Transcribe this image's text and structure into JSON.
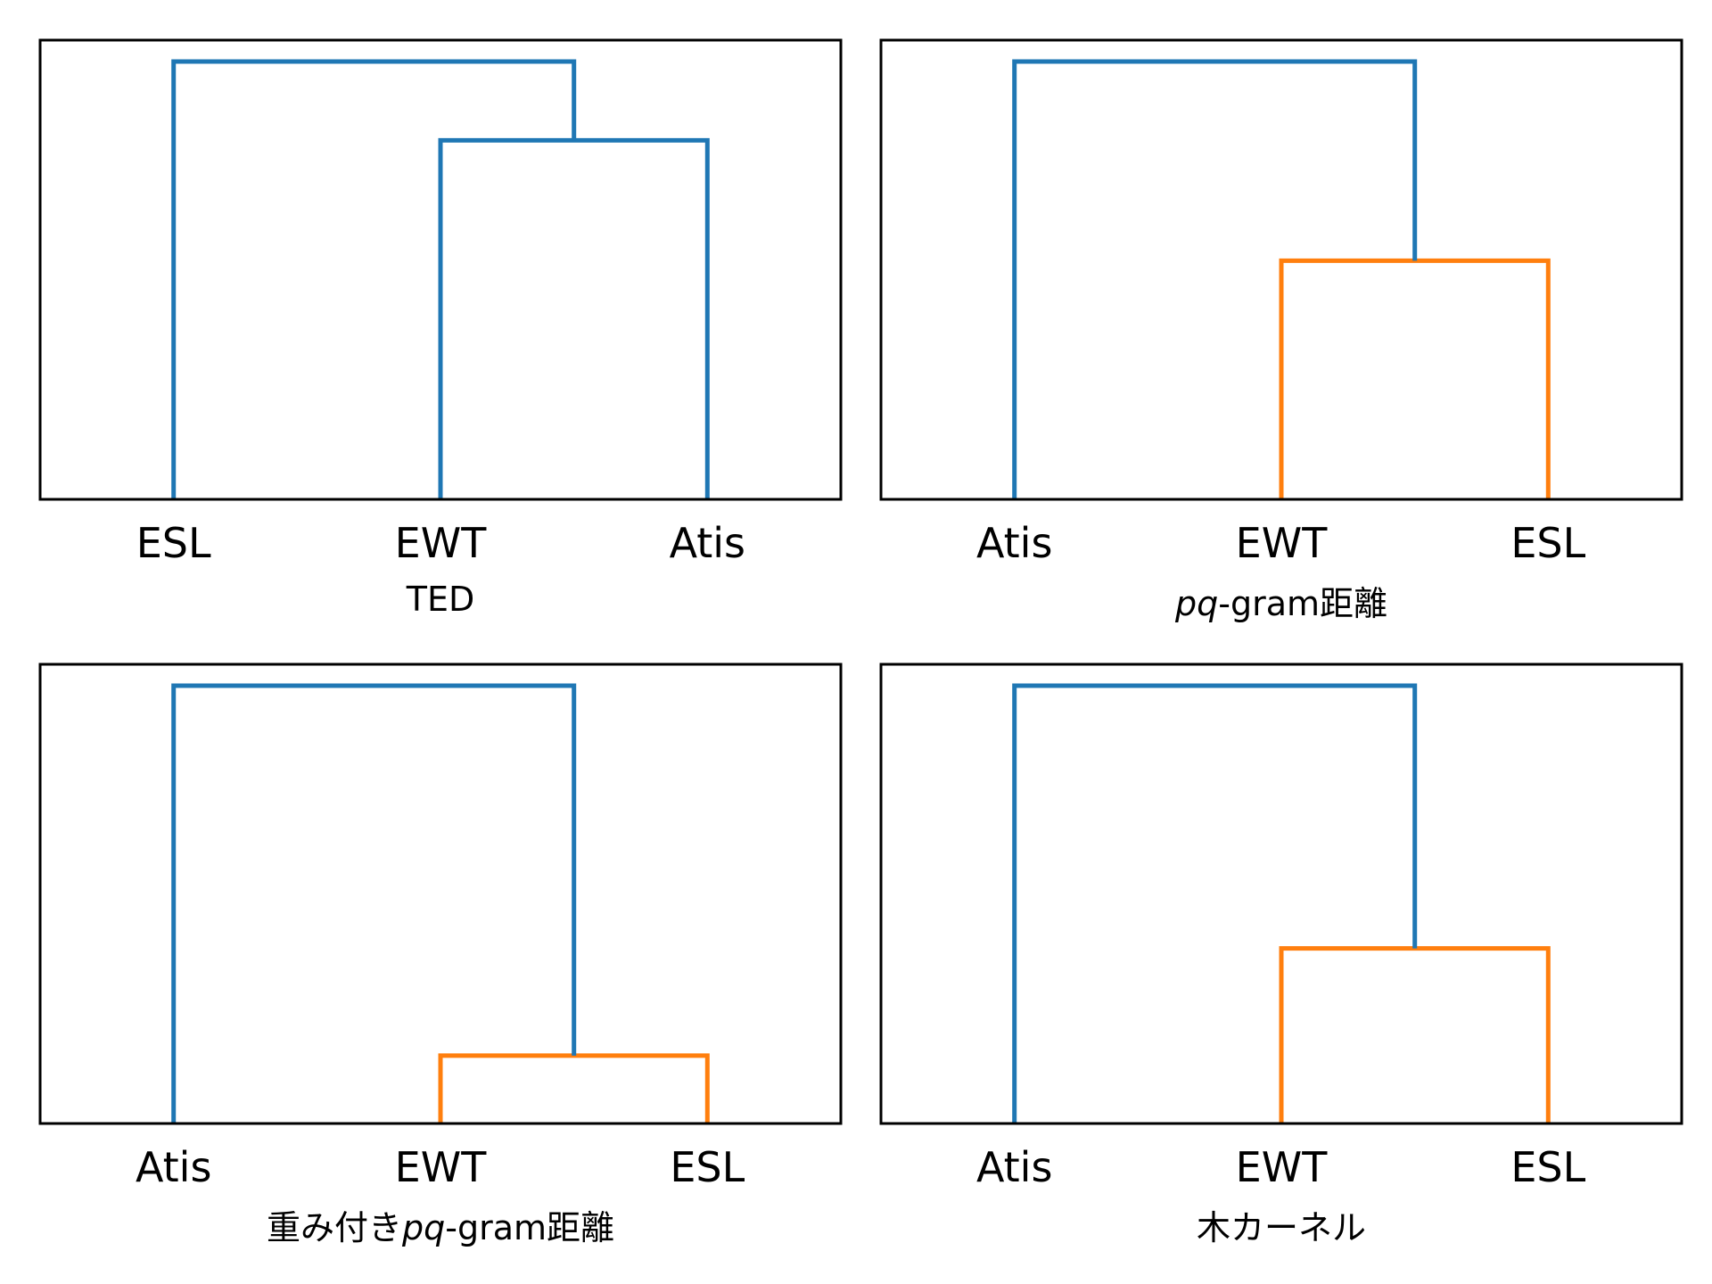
{
  "chart_data": [
    {
      "type": "dendrogram",
      "caption": [
        {
          "text": "TED",
          "italic": false
        }
      ],
      "leaves": [
        "ESL",
        "EWT",
        "Atis"
      ],
      "merges": [
        {
          "left": 1,
          "right": 2,
          "height": 0.82,
          "color": "#1f77b4"
        },
        {
          "left": 0,
          "right": 3,
          "height": 1.0,
          "color": "#1f77b4"
        }
      ],
      "leaf_colors": [
        "#1f77b4",
        "#1f77b4",
        "#1f77b4"
      ]
    },
    {
      "type": "dendrogram",
      "caption": [
        {
          "text": "pq",
          "italic": true
        },
        {
          "text": "-gram距離",
          "italic": false
        }
      ],
      "leaves": [
        "Atis",
        "EWT",
        "ESL"
      ],
      "merges": [
        {
          "left": 1,
          "right": 2,
          "height": 0.545,
          "color": "#ff7f0e"
        },
        {
          "left": 0,
          "right": 3,
          "height": 1.0,
          "color": "#1f77b4"
        }
      ],
      "leaf_colors": [
        "#1f77b4",
        "#ff7f0e",
        "#ff7f0e"
      ]
    },
    {
      "type": "dendrogram",
      "caption": [
        {
          "text": "重み付き",
          "italic": false
        },
        {
          "text": "pq",
          "italic": true
        },
        {
          "text": "-gram距離",
          "italic": false
        }
      ],
      "leaves": [
        "Atis",
        "EWT",
        "ESL"
      ],
      "merges": [
        {
          "left": 1,
          "right": 2,
          "height": 0.155,
          "color": "#ff7f0e"
        },
        {
          "left": 0,
          "right": 3,
          "height": 1.0,
          "color": "#1f77b4"
        }
      ],
      "leaf_colors": [
        "#1f77b4",
        "#ff7f0e",
        "#ff7f0e"
      ]
    },
    {
      "type": "dendrogram",
      "caption": [
        {
          "text": "木カーネル",
          "italic": false
        }
      ],
      "leaves": [
        "Atis",
        "EWT",
        "ESL"
      ],
      "merges": [
        {
          "left": 1,
          "right": 2,
          "height": 0.4,
          "color": "#ff7f0e"
        },
        {
          "left": 0,
          "right": 3,
          "height": 1.0,
          "color": "#1f77b4"
        }
      ],
      "leaf_colors": [
        "#1f77b4",
        "#ff7f0e",
        "#ff7f0e"
      ]
    }
  ]
}
